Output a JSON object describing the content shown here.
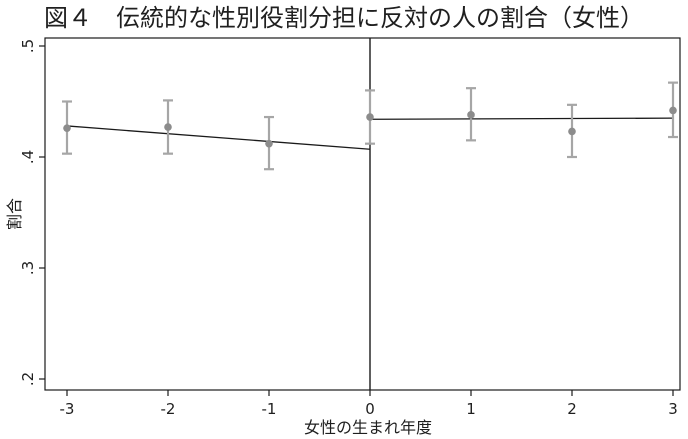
{
  "chart_data": {
    "type": "scatter",
    "title": "図４　伝統的な性別役割分担に反対の人の割合（女性）",
    "xlabel": "女性の生まれ年度",
    "ylabel": "割合",
    "xlim": [
      -3,
      3
    ],
    "ylim": [
      0.2,
      0.5
    ],
    "x_ticks": [
      -3,
      -2,
      -1,
      0,
      1,
      2,
      3
    ],
    "x_tick_labels": [
      "-3",
      "-2",
      "-1",
      "0",
      "1",
      "2",
      "3"
    ],
    "y_ticks": [
      0.2,
      0.3,
      0.4,
      0.5
    ],
    "y_tick_labels": [
      ".2",
      ".3",
      ".4",
      ".5"
    ],
    "cutoff_x": 0,
    "series": [
      {
        "x": [
          -3,
          -2,
          -1,
          0,
          1,
          2,
          3
        ],
        "y": [
          0.426,
          0.427,
          0.412,
          0.436,
          0.438,
          0.423,
          0.442
        ],
        "ci_low": [
          0.403,
          0.403,
          0.389,
          0.412,
          0.415,
          0.4,
          0.418
        ],
        "ci_high": [
          0.45,
          0.451,
          0.436,
          0.46,
          0.462,
          0.447,
          0.467
        ]
      }
    ],
    "fit_lines": [
      {
        "x": [
          -3,
          0
        ],
        "y": [
          0.428,
          0.407
        ]
      },
      {
        "x": [
          0,
          3
        ],
        "y": [
          0.434,
          0.435
        ]
      }
    ],
    "colors": {
      "points": "#8c8c8c",
      "error_bars": "#a6a6a6",
      "fit_line": "#1a1a1a",
      "axis": "#1a1a1a"
    },
    "grid": false
  }
}
